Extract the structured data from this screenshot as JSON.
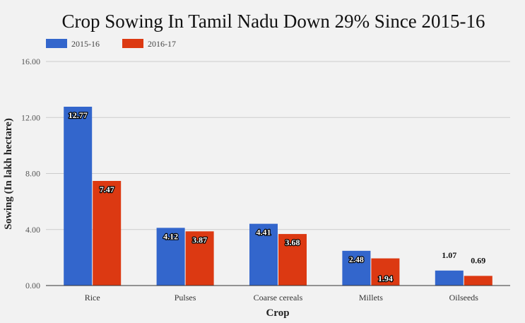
{
  "chart_data": {
    "type": "bar",
    "title": "Crop Sowing In Tamil Nadu Down 29% Since 2015-16",
    "xlabel": "Crop",
    "ylabel": "Sowing (In lakh hectare)",
    "categories": [
      "Rice",
      "Pulses",
      "Coarse cereals",
      "Millets",
      "Oilseeds"
    ],
    "series": [
      {
        "name": "2015-16",
        "color": "#3366cc",
        "values": [
          12.77,
          4.12,
          4.41,
          2.48,
          1.07
        ]
      },
      {
        "name": "2016-17",
        "color": "#dc3912",
        "values": [
          7.47,
          3.87,
          3.68,
          1.94,
          0.69
        ]
      }
    ],
    "ylim": [
      0,
      16
    ],
    "yticks": [
      "0.00",
      "4.00",
      "8.00",
      "12.00",
      "16.00"
    ],
    "grid": true,
    "legend_position": "top-left",
    "data_labels": true
  }
}
